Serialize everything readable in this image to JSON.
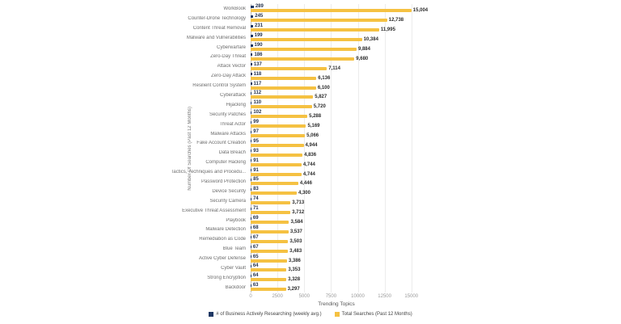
{
  "chart_data": {
    "type": "bar",
    "orientation": "horizontal",
    "title": "",
    "xlabel": "Trending Topics",
    "ylabel": "Number Of Searches (Past 12 Months)",
    "xlim": [
      0,
      16000
    ],
    "xticks": [
      0,
      2500,
      5000,
      7500,
      10000,
      12500,
      15000
    ],
    "grid": true,
    "legend_position": "bottom",
    "categories": [
      "WorkBook",
      "Counter-Drone Technology",
      "Content Threat Removal",
      "Malware and Vulnerabilities",
      "Cyberwarfare",
      "Zero-Day Threat",
      "Attack Vector",
      "Zero-Day Attack",
      "Resilient Control System",
      "Cyberattack",
      "Hijacking",
      "Security Patches",
      "Threat Actor",
      "Malware Attacks",
      "Fake Account Creation",
      "Data Breach",
      "Computer Hacking",
      "Tactics, Techniques and Procedu...",
      "Password Protection",
      "Device Security",
      "Security Camera",
      "Executive Threat Assessment",
      "Playbook",
      "Malware Detection",
      "Remediation as Code",
      "Blue Team",
      "Active Cyber Defense",
      "Cyber Vault",
      "Strong Encryption",
      "Backdoor"
    ],
    "series": [
      {
        "name": "# of Business Actively Researching (weekly avg.)",
        "color": "#1f3864",
        "values": [
          289,
          245,
          231,
          199,
          190,
          186,
          137,
          118,
          117,
          112,
          110,
          102,
          99,
          97,
          95,
          93,
          91,
          91,
          85,
          83,
          74,
          71,
          69,
          68,
          67,
          67,
          65,
          64,
          64,
          63
        ]
      },
      {
        "name": "Total Searches (Past 12 Months)",
        "color": "#f5c142",
        "values": [
          15004,
          12738,
          11995,
          10384,
          9884,
          9680,
          7114,
          6136,
          6100,
          5827,
          5720,
          5288,
          5169,
          5066,
          4944,
          4836,
          4744,
          4744,
          4446,
          4300,
          3713,
          3712,
          3584,
          3537,
          3503,
          3483,
          3386,
          3353,
          3328,
          3297
        ],
        "labels": [
          "15,004",
          "12,738",
          "11,995",
          "10,384",
          "9,884",
          "9,680",
          "7,114",
          "6,136",
          "6,100",
          "5,827",
          "5,720",
          "5,288",
          "5,169",
          "5,066",
          "4,944",
          "4,836",
          "4,744",
          "4,744",
          "4,446",
          "4,300",
          "3,713",
          "3,712",
          "3,584",
          "3,537",
          "3,503",
          "3,483",
          "3,386",
          "3,353",
          "3,328",
          "3,297"
        ]
      }
    ]
  }
}
